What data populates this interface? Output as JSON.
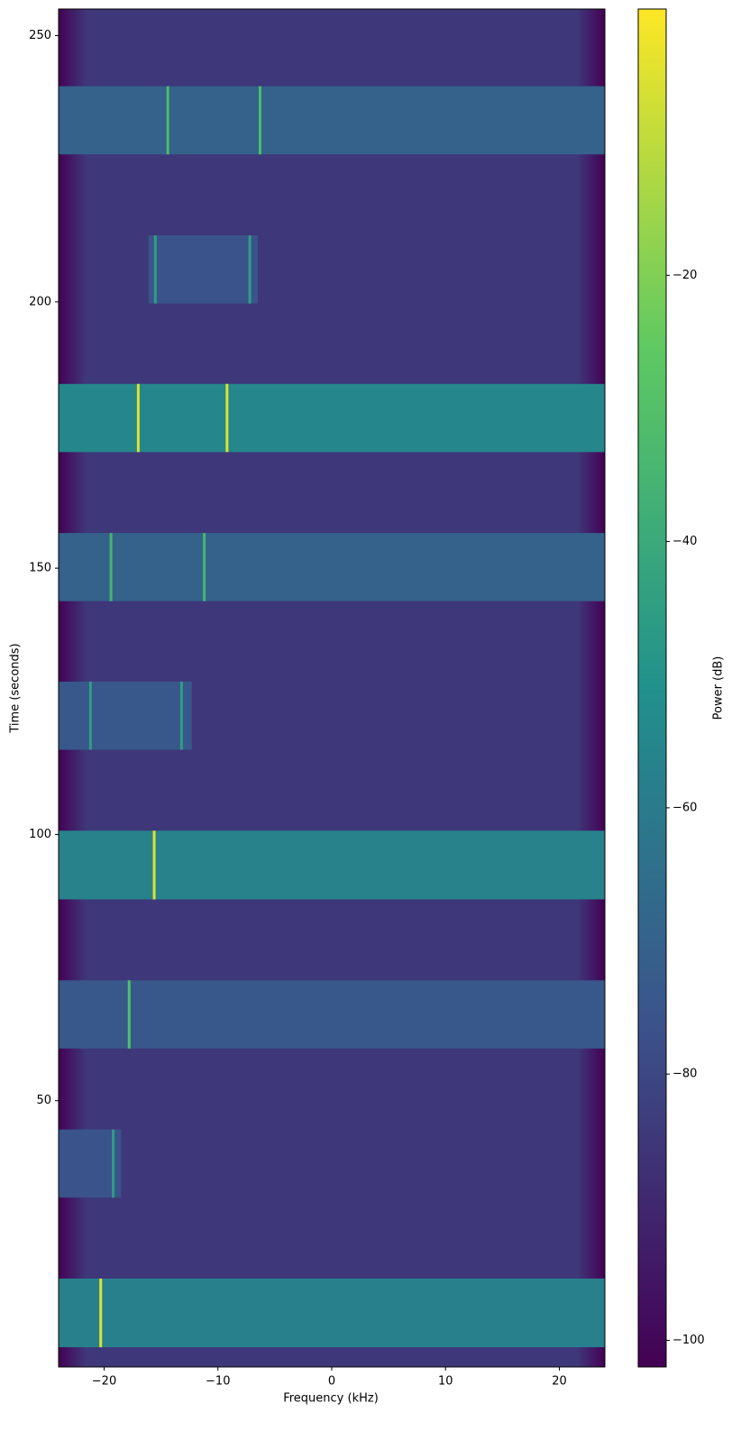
{
  "chart_data": {
    "type": "spectrogram",
    "xlabel": "Frequency (kHz)",
    "ylabel": "Time (seconds)",
    "colorbar_label": "Power (dB)",
    "colormap": "viridis",
    "xlim": [
      -24,
      24
    ],
    "xticks": [
      {
        "value": -20,
        "label": "−20"
      },
      {
        "value": -10,
        "label": "−10"
      },
      0,
      10,
      20
    ],
    "ylim": [
      0,
      255
    ],
    "yticks": [
      50,
      100,
      150,
      200,
      250
    ],
    "clim": [
      -102,
      0
    ],
    "cticks": [
      {
        "value": -100,
        "label": "−100"
      },
      {
        "value": -80,
        "label": "−80"
      },
      {
        "value": -60,
        "label": "−60"
      },
      {
        "value": -40,
        "label": "−40"
      },
      {
        "value": -20,
        "label": "−20"
      }
    ],
    "background_level": -85,
    "edge_level": -102,
    "bursts": [
      {
        "t0": 3.7,
        "t1": 16.6,
        "f0": -24,
        "f1": 24,
        "level": -58,
        "lines": [
          -20.3
        ],
        "line_level": -5
      },
      {
        "t0": 31.8,
        "t1": 44.6,
        "f0": -24,
        "f1": -18.5,
        "level": -76,
        "lines": [
          -19.2
        ],
        "line_level": -45
      },
      {
        "t0": 59.8,
        "t1": 72.6,
        "f0": -24,
        "f1": 24,
        "level": -74,
        "lines": [
          -17.8
        ],
        "line_level": -30
      },
      {
        "t0": 87.8,
        "t1": 100.7,
        "f0": -24,
        "f1": 24,
        "level": -57,
        "lines": [
          -15.6
        ],
        "line_level": -5
      },
      {
        "t0": 115.9,
        "t1": 128.7,
        "f0": -24,
        "f1": -12.3,
        "level": -74,
        "lines": [
          -21.2,
          -13.2
        ],
        "line_level": -45
      },
      {
        "t0": 143.8,
        "t1": 156.6,
        "f0": -24,
        "f1": 24,
        "level": -70,
        "lines": [
          -19.4,
          -11.2
        ],
        "line_level": -35
      },
      {
        "t0": 171.8,
        "t1": 184.6,
        "f0": -24,
        "f1": 24,
        "level": -55,
        "lines": [
          -17,
          -9.2
        ],
        "line_level": -5
      },
      {
        "t0": 199.7,
        "t1": 212.5,
        "f0": -16.1,
        "f1": -6.5,
        "level": -76,
        "lines": [
          -15.5,
          -7.2
        ],
        "line_level": -45
      },
      {
        "t0": 227.7,
        "t1": 240.5,
        "f0": -24,
        "f1": 24,
        "level": -70,
        "lines": [
          -14.4,
          -6.3
        ],
        "line_level": -32
      }
    ]
  }
}
